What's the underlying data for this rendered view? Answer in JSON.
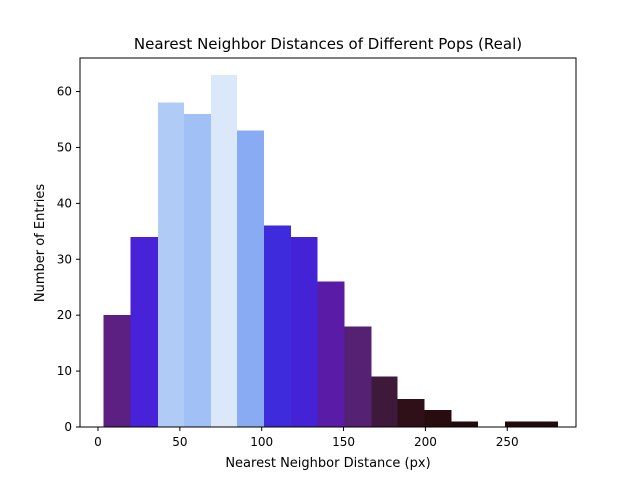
{
  "chart_data": {
    "type": "bar",
    "title": "Nearest Neighbor Distances of Different Pops (Real)",
    "xlabel": "Nearest Neighbor Distance (px)",
    "ylabel": "Number of Entries",
    "xlim": [
      -11,
      292
    ],
    "ylim": [
      0,
      66
    ],
    "xticks": [
      0,
      50,
      100,
      150,
      200,
      250
    ],
    "yticks": [
      0,
      10,
      20,
      30,
      40,
      50,
      60
    ],
    "grid": false,
    "bins": [
      {
        "start": 3.5,
        "end": 20,
        "value": 20,
        "color": "#5c1f82"
      },
      {
        "start": 20,
        "end": 36.5,
        "value": 34,
        "color": "#4822d8"
      },
      {
        "start": 36.5,
        "end": 52.5,
        "value": 58,
        "color": "#b0cbf6"
      },
      {
        "start": 52.5,
        "end": 69,
        "value": 56,
        "color": "#a1c0f5"
      },
      {
        "start": 69,
        "end": 85,
        "value": 63,
        "color": "#dbe8fa"
      },
      {
        "start": 85,
        "end": 101.5,
        "value": 53,
        "color": "#89abf4"
      },
      {
        "start": 101.5,
        "end": 118,
        "value": 36,
        "color": "#3e2bdc"
      },
      {
        "start": 118,
        "end": 134,
        "value": 34,
        "color": "#4422d6"
      },
      {
        "start": 134,
        "end": 150.5,
        "value": 26,
        "color": "#5a1ba6"
      },
      {
        "start": 150.5,
        "end": 167,
        "value": 18,
        "color": "#542173"
      },
      {
        "start": 167,
        "end": 183,
        "value": 9,
        "color": "#3e1939"
      },
      {
        "start": 183,
        "end": 199.5,
        "value": 5,
        "color": "#2f1018"
      },
      {
        "start": 199.5,
        "end": 216,
        "value": 3,
        "color": "#290c10"
      },
      {
        "start": 216,
        "end": 232,
        "value": 1,
        "color": "#220a0c"
      },
      {
        "start": 232,
        "end": 248.5,
        "value": 0,
        "color": "#220a0c"
      },
      {
        "start": 248.5,
        "end": 265,
        "value": 1,
        "color": "#220a0c"
      },
      {
        "start": 265,
        "end": 281,
        "value": 1,
        "color": "#220a0c"
      }
    ]
  }
}
